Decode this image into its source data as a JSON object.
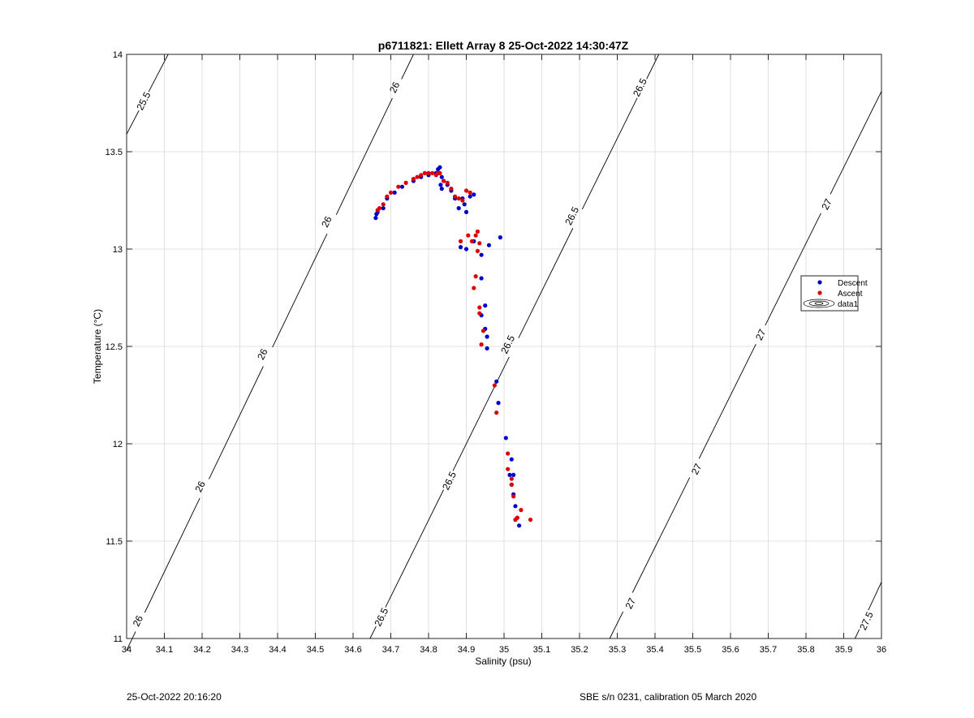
{
  "chart_data": {
    "type": "scatter",
    "title": "p6711821: Ellett Array 8 25-Oct-2022 14:30:47Z",
    "xlabel": "Salinity (psu)",
    "ylabel": "Temperature (°C)",
    "xlim": [
      34,
      36
    ],
    "ylim": [
      11,
      14
    ],
    "x_ticks": [
      "34",
      "34.1",
      "34.2",
      "34.3",
      "34.4",
      "34.5",
      "34.6",
      "34.7",
      "34.8",
      "34.9",
      "35",
      "35.1",
      "35.2",
      "35.3",
      "35.4",
      "35.5",
      "35.6",
      "35.7",
      "35.8",
      "35.9",
      "36"
    ],
    "y_ticks": [
      "11",
      "11.5",
      "12",
      "12.5",
      "13",
      "13.5",
      "14"
    ],
    "grid": true,
    "legend": {
      "placement": "right",
      "entries": [
        "Descent",
        "Ascent",
        "data1"
      ]
    },
    "colors": {
      "descent": "#0000cc",
      "ascent": "#dd0000",
      "contour": "#000000",
      "grid": "#e0e0e0"
    },
    "contours": [
      {
        "level": "25.5",
        "points": [
          [
            34.0,
            13.59
          ],
          [
            34.11,
            14.0
          ]
        ],
        "labels": [
          {
            "x": 34.045,
            "y": 13.76
          }
        ]
      },
      {
        "level": "26",
        "points": [
          [
            34.0,
            10.94
          ],
          [
            34.76,
            14.0
          ]
        ],
        "labels": [
          {
            "x": 34.03,
            "y": 11.09
          },
          {
            "x": 34.195,
            "y": 11.78
          },
          {
            "x": 34.36,
            "y": 12.46
          },
          {
            "x": 34.53,
            "y": 13.14
          },
          {
            "x": 34.71,
            "y": 13.83
          }
        ]
      },
      {
        "level": "26.5",
        "points": [
          [
            34.645,
            11.0
          ],
          [
            35.41,
            14.0
          ]
        ],
        "labels": [
          {
            "x": 34.675,
            "y": 11.11
          },
          {
            "x": 34.855,
            "y": 11.81
          },
          {
            "x": 35.01,
            "y": 12.51
          },
          {
            "x": 35.18,
            "y": 13.17
          },
          {
            "x": 35.36,
            "y": 13.83
          }
        ]
      },
      {
        "level": "27",
        "points": [
          [
            35.28,
            11.0
          ],
          [
            36.0,
            13.81
          ]
        ],
        "labels": [
          {
            "x": 35.335,
            "y": 11.18
          },
          {
            "x": 35.51,
            "y": 11.87
          },
          {
            "x": 35.68,
            "y": 12.56
          },
          {
            "x": 35.855,
            "y": 13.23
          }
        ]
      },
      {
        "level": "27.5",
        "points": [
          [
            35.93,
            11.0
          ],
          [
            36.0,
            11.29
          ]
        ],
        "labels": [
          {
            "x": 35.96,
            "y": 11.09
          }
        ]
      }
    ],
    "series": [
      {
        "name": "Descent",
        "points": [
          [
            34.66,
            13.16
          ],
          [
            34.662,
            13.18
          ],
          [
            34.665,
            13.19
          ],
          [
            34.68,
            13.21
          ],
          [
            34.69,
            13.26
          ],
          [
            34.71,
            13.29
          ],
          [
            34.73,
            13.32
          ],
          [
            34.76,
            13.35
          ],
          [
            34.78,
            13.37
          ],
          [
            34.8,
            13.38
          ],
          [
            34.82,
            13.39
          ],
          [
            34.825,
            13.41
          ],
          [
            34.83,
            13.42
          ],
          [
            34.835,
            13.37
          ],
          [
            34.832,
            13.33
          ],
          [
            34.835,
            13.31
          ],
          [
            34.84,
            13.35
          ],
          [
            34.85,
            13.33
          ],
          [
            34.86,
            13.3
          ],
          [
            34.87,
            13.26
          ],
          [
            34.88,
            13.21
          ],
          [
            34.89,
            13.26
          ],
          [
            34.895,
            13.23
          ],
          [
            34.9,
            13.19
          ],
          [
            34.91,
            13.27
          ],
          [
            34.92,
            13.28
          ],
          [
            34.885,
            13.01
          ],
          [
            34.9,
            13.0
          ],
          [
            34.92,
            13.04
          ],
          [
            34.94,
            12.97
          ],
          [
            34.96,
            13.02
          ],
          [
            34.99,
            13.06
          ],
          [
            34.94,
            12.85
          ],
          [
            34.95,
            12.71
          ],
          [
            34.94,
            12.66
          ],
          [
            34.95,
            12.59
          ],
          [
            34.955,
            12.55
          ],
          [
            34.955,
            12.49
          ],
          [
            34.98,
            12.32
          ],
          [
            34.985,
            12.21
          ],
          [
            35.005,
            12.03
          ],
          [
            35.02,
            11.92
          ],
          [
            35.015,
            11.84
          ],
          [
            35.025,
            11.84
          ],
          [
            35.02,
            11.79
          ],
          [
            35.025,
            11.74
          ],
          [
            35.03,
            11.68
          ],
          [
            35.035,
            11.62
          ],
          [
            35.04,
            11.58
          ]
        ]
      },
      {
        "name": "Ascent",
        "points": [
          [
            34.665,
            13.2
          ],
          [
            34.67,
            13.21
          ],
          [
            34.68,
            13.23
          ],
          [
            34.69,
            13.27
          ],
          [
            34.7,
            13.29
          ],
          [
            34.72,
            13.32
          ],
          [
            34.74,
            13.34
          ],
          [
            34.76,
            13.36
          ],
          [
            34.77,
            13.37
          ],
          [
            34.78,
            13.38
          ],
          [
            34.79,
            13.39
          ],
          [
            34.8,
            13.39
          ],
          [
            34.81,
            13.39
          ],
          [
            34.82,
            13.38
          ],
          [
            34.825,
            13.39
          ],
          [
            34.83,
            13.39
          ],
          [
            34.84,
            13.35
          ],
          [
            34.85,
            13.34
          ],
          [
            34.86,
            13.31
          ],
          [
            34.87,
            13.27
          ],
          [
            34.88,
            13.26
          ],
          [
            34.89,
            13.25
          ],
          [
            34.9,
            13.3
          ],
          [
            34.91,
            13.29
          ],
          [
            34.885,
            13.04
          ],
          [
            34.905,
            13.07
          ],
          [
            34.915,
            13.04
          ],
          [
            34.925,
            13.07
          ],
          [
            34.93,
            13.09
          ],
          [
            34.935,
            13.03
          ],
          [
            34.93,
            12.99
          ],
          [
            34.925,
            12.86
          ],
          [
            34.92,
            12.8
          ],
          [
            34.935,
            12.7
          ],
          [
            34.935,
            12.67
          ],
          [
            34.945,
            12.58
          ],
          [
            34.94,
            12.51
          ],
          [
            34.975,
            12.3
          ],
          [
            34.98,
            12.16
          ],
          [
            35.01,
            11.95
          ],
          [
            35.01,
            11.87
          ],
          [
            35.02,
            11.82
          ],
          [
            35.02,
            11.79
          ],
          [
            35.025,
            11.73
          ],
          [
            35.03,
            11.61
          ],
          [
            35.035,
            11.62
          ],
          [
            35.045,
            11.66
          ],
          [
            35.07,
            11.61
          ]
        ]
      }
    ]
  },
  "footer": {
    "left": "25-Oct-2022 20:16:20",
    "right": "SBE s/n 0231, calibration 05 March 2020"
  }
}
